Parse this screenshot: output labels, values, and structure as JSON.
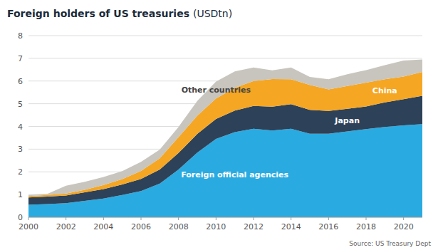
{
  "chart_data": {
    "type": "area",
    "stacked": true,
    "title": "Foreign holders of US treasuries",
    "subtitle": "(USDtn)",
    "source": "Source: US Treasury Dept",
    "x": [
      2000,
      2001,
      2002,
      2003,
      2004,
      2005,
      2006,
      2007,
      2008,
      2009,
      2010,
      2011,
      2012,
      2013,
      2014,
      2015,
      2016,
      2017,
      2018,
      2019,
      2020,
      2021
    ],
    "series": [
      {
        "name": "Foreign official agencies",
        "color": "#29ABE2",
        "values": [
          0.55,
          0.58,
          0.62,
          0.72,
          0.82,
          0.98,
          1.15,
          1.48,
          2.1,
          2.85,
          3.45,
          3.75,
          3.9,
          3.82,
          3.9,
          3.68,
          3.68,
          3.78,
          3.88,
          3.98,
          4.05,
          4.1
        ]
      },
      {
        "name": "Japan",
        "color": "#2D4159",
        "values": [
          0.32,
          0.33,
          0.34,
          0.38,
          0.42,
          0.46,
          0.54,
          0.62,
          0.73,
          0.82,
          0.88,
          0.95,
          1.0,
          1.05,
          1.08,
          1.05,
          1.0,
          1.0,
          1.0,
          1.08,
          1.15,
          1.25
        ]
      },
      {
        "name": "China",
        "color": "#F5A623",
        "values": [
          0.06,
          0.07,
          0.08,
          0.11,
          0.18,
          0.24,
          0.35,
          0.5,
          0.7,
          0.8,
          0.9,
          1.0,
          1.1,
          1.22,
          1.1,
          1.1,
          0.95,
          1.0,
          1.05,
          1.02,
          1.0,
          1.05
        ]
      },
      {
        "name": "Other countries",
        "color": "#C8C5BE",
        "values": [
          0.05,
          0.05,
          0.35,
          0.35,
          0.35,
          0.35,
          0.4,
          0.38,
          0.45,
          0.65,
          0.75,
          0.72,
          0.6,
          0.38,
          0.52,
          0.35,
          0.45,
          0.52,
          0.55,
          0.62,
          0.7,
          0.55
        ]
      }
    ],
    "xlim": [
      2000,
      2021
    ],
    "xticks": [
      2000,
      2002,
      2004,
      2006,
      2008,
      2010,
      2012,
      2014,
      2016,
      2018,
      2020
    ],
    "ylim": [
      0,
      8
    ],
    "yticks": [
      0,
      1,
      2,
      3,
      4,
      5,
      6,
      7,
      8
    ],
    "grid": true
  }
}
